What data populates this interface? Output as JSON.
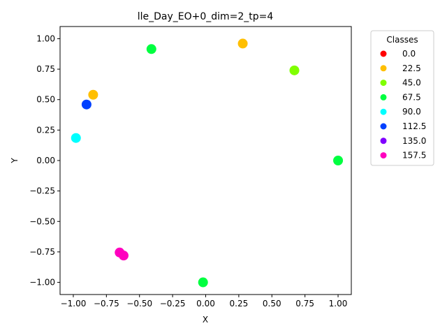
{
  "chart_data": {
    "type": "scatter",
    "title": "lle_Day_EO+0_dim=2_tp=4",
    "xlabel": "X",
    "ylabel": "Y",
    "xlim": [
      -1.1,
      1.1
    ],
    "ylim": [
      -1.1,
      1.1
    ],
    "xticks": [
      -1.0,
      -0.75,
      -0.5,
      -0.25,
      0.0,
      0.25,
      0.5,
      0.75,
      1.0
    ],
    "yticks": [
      -1.0,
      -0.75,
      -0.5,
      -0.25,
      0.0,
      0.25,
      0.5,
      0.75,
      1.0
    ],
    "xtick_labels": [
      "−1.00",
      "−0.75",
      "−0.50",
      "−0.25",
      "0.00",
      "0.25",
      "0.50",
      "0.75",
      "1.00"
    ],
    "ytick_labels": [
      "−1.00",
      "−0.75",
      "−0.50",
      "−0.25",
      "0.00",
      "0.25",
      "0.50",
      "0.75",
      "1.00"
    ],
    "grid": false,
    "legend": {
      "title": "Classes",
      "placement": "outside-right-top",
      "entries": [
        {
          "label": "0.0",
          "color": "#ff0000"
        },
        {
          "label": "22.5",
          "color": "#ffbf00"
        },
        {
          "label": "45.0",
          "color": "#80ff00"
        },
        {
          "label": "67.5",
          "color": "#00ff40"
        },
        {
          "label": "90.0",
          "color": "#00ffff"
        },
        {
          "label": "112.5",
          "color": "#0040ff"
        },
        {
          "label": "135.0",
          "color": "#8000ff"
        },
        {
          "label": "157.5",
          "color": "#ff00bf"
        }
      ]
    },
    "points": [
      {
        "x": 0.28,
        "y": 0.96,
        "class": "22.5"
      },
      {
        "x": -0.85,
        "y": 0.54,
        "class": "22.5"
      },
      {
        "x": 0.67,
        "y": 0.74,
        "class": "45.0"
      },
      {
        "x": -0.41,
        "y": 0.915,
        "class": "67.5"
      },
      {
        "x": 1.0,
        "y": 0.0,
        "class": "67.5"
      },
      {
        "x": -0.02,
        "y": -1.0,
        "class": "67.5"
      },
      {
        "x": -0.98,
        "y": 0.185,
        "class": "90.0"
      },
      {
        "x": -0.9,
        "y": 0.46,
        "class": "112.5"
      },
      {
        "x": -0.65,
        "y": -0.755,
        "class": "157.5"
      },
      {
        "x": -0.62,
        "y": -0.78,
        "class": "157.5"
      }
    ]
  }
}
